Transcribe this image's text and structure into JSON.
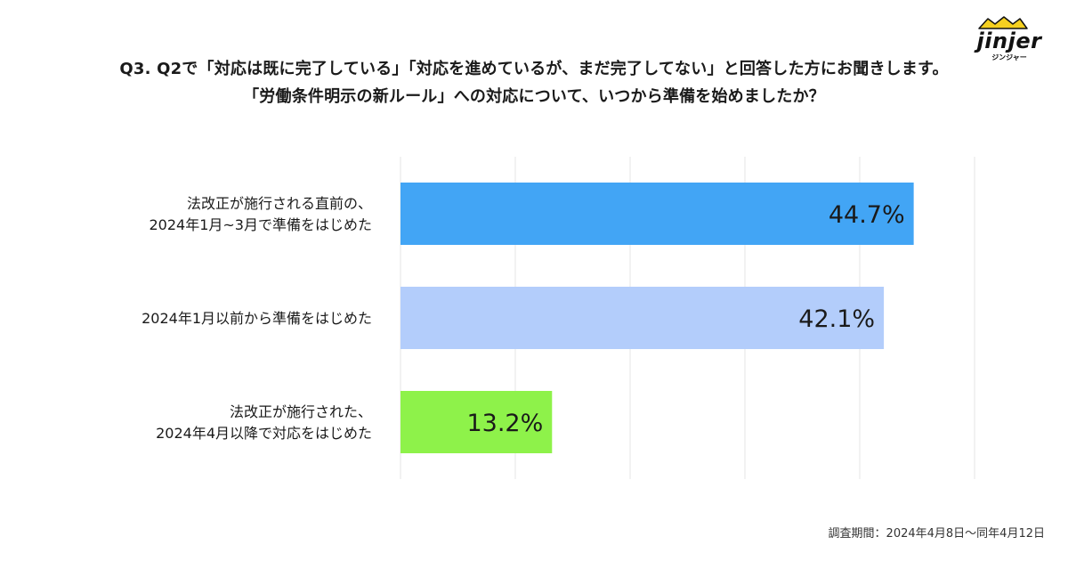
{
  "title": {
    "line1": "Q3. Q2で「対応は既に完了している」「対応を進めているが、まだ完了してない」と回答した方にお聞きします。",
    "line2": "「労働条件明示の新ルール」への対応について、いつから準備を始めましたか？"
  },
  "logo": {
    "word": "jinjer",
    "kana": "ジンジャー",
    "colors": {
      "mark": "#f5d020",
      "text": "#111111"
    }
  },
  "footer": {
    "survey_period": "調査期間：2024年4月8日〜同年4月12日"
  },
  "chart_data": {
    "type": "bar",
    "orientation": "horizontal",
    "unit": "%",
    "xlim": [
      0,
      50
    ],
    "grid": true,
    "categories": [
      [
        "法改正が施行される直前の、",
        "2024年1月~3月で準備をはじめた"
      ],
      [
        "2024年1月以前から準備をはじめた"
      ],
      [
        "法改正が施行された、",
        "2024年4月以降で対応をはじめた"
      ]
    ],
    "values": [
      44.7,
      42.1,
      13.2
    ],
    "value_labels": [
      "44.7%",
      "42.1%",
      "13.2%"
    ],
    "colors": [
      "#42a5f5",
      "#b3cdfb",
      "#8ef24a"
    ],
    "gridline_color": "#e6e6e6"
  }
}
